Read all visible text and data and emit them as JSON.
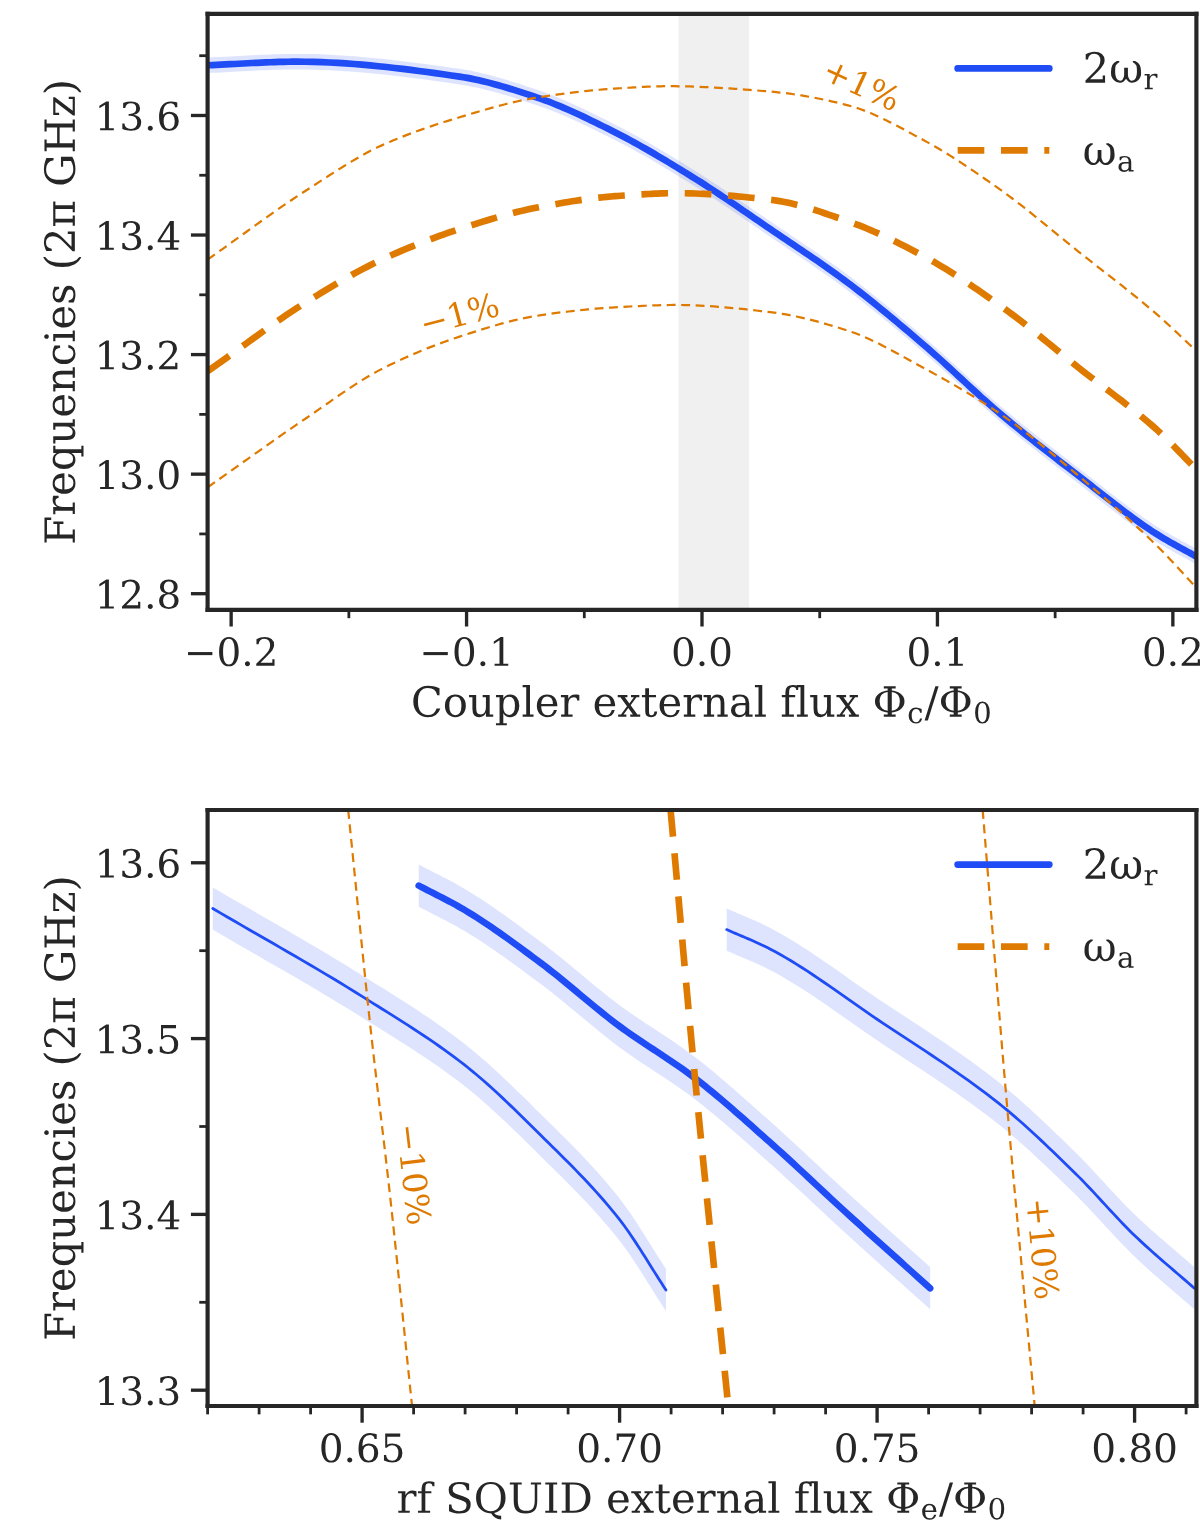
{
  "chart_data": [
    {
      "type": "line",
      "xlabel": "Coupler external flux Φ$_{c}$/Φ$_{0}$",
      "ylabel": "Frequencies (2π GHz)",
      "xlim": [
        -0.21,
        0.21
      ],
      "ylim": [
        12.773,
        13.77
      ],
      "xticks": [
        {
          "value": -0.2,
          "label": "−0.2"
        },
        {
          "value": -0.15,
          "label": null
        },
        {
          "value": -0.1,
          "label": "−0.1"
        },
        {
          "value": -0.05,
          "label": null
        },
        {
          "value": 0.0,
          "label": "0.0"
        },
        {
          "value": 0.05,
          "label": null
        },
        {
          "value": 0.1,
          "label": "0.1"
        },
        {
          "value": 0.15,
          "label": null
        },
        {
          "value": 0.2,
          "label": "0.2"
        }
      ],
      "yticks": [
        {
          "value": 12.8,
          "label": "12.8"
        },
        {
          "value": 12.9,
          "label": null
        },
        {
          "value": 13.0,
          "label": "13.0"
        },
        {
          "value": 13.1,
          "label": null
        },
        {
          "value": 13.2,
          "label": "13.2"
        },
        {
          "value": 13.3,
          "label": null
        },
        {
          "value": 13.4,
          "label": "13.4"
        },
        {
          "value": 13.5,
          "label": null
        },
        {
          "value": 13.6,
          "label": "13.6"
        },
        {
          "value": 13.7,
          "label": null
        }
      ],
      "bands": [
        {
          "axis": "x",
          "from": -0.01,
          "to": 0.02,
          "color": "#f0f0f0"
        }
      ],
      "grid": false,
      "legend": "top right",
      "series": [
        {
          "name": "2ω$_{r}$",
          "color": "#1f4cf5",
          "line_style": "solid",
          "x": [
            -0.21,
            -0.172,
            -0.103,
            -0.07,
            -0.037,
            -0.004,
            0.029,
            0.062,
            0.094,
            0.127,
            0.16,
            0.193,
            0.21
          ],
          "values": [
            13.684,
            13.69,
            13.665,
            13.63,
            13.572,
            13.497,
            13.41,
            13.32,
            13.217,
            13.1,
            12.997,
            12.9,
            12.862
          ],
          "lower": [
            13.671,
            13.677,
            13.652,
            13.617,
            13.559,
            13.484,
            13.397,
            13.307,
            13.204,
            13.087,
            12.984,
            12.887,
            12.849
          ],
          "upper": [
            13.697,
            13.703,
            13.678,
            13.643,
            13.585,
            13.51,
            13.423,
            13.333,
            13.23,
            13.113,
            13.01,
            12.913,
            12.875
          ]
        },
        {
          "name": "ω$_{a}$",
          "color": "#df7a00",
          "line_style": "dashed",
          "x": [
            -0.21,
            -0.168,
            -0.136,
            -0.103,
            -0.07,
            -0.037,
            -0.011,
            0.029,
            0.062,
            0.094,
            0.127,
            0.16,
            0.193,
            0.21
          ],
          "values": [
            13.172,
            13.288,
            13.359,
            13.41,
            13.446,
            13.465,
            13.47,
            13.459,
            13.423,
            13.365,
            13.281,
            13.178,
            13.075,
            13.008
          ]
        },
        {
          "color": "#df7a00",
          "line_style": "dashed",
          "x": [
            -0.21,
            -0.168,
            -0.136,
            -0.103,
            -0.07,
            -0.037,
            -0.014,
            0.029,
            0.062,
            0.094,
            0.127,
            0.16,
            0.193,
            0.21
          ],
          "values": [
            13.359,
            13.475,
            13.55,
            13.597,
            13.63,
            13.645,
            13.649,
            13.64,
            13.617,
            13.559,
            13.475,
            13.372,
            13.268,
            13.206
          ]
        },
        {
          "color": "#df7a00",
          "line_style": "dashed",
          "x": [
            -0.21,
            -0.168,
            -0.136,
            -0.103,
            -0.07,
            -0.037,
            -0.011,
            0.029,
            0.062,
            0.094,
            0.127,
            0.16,
            0.193,
            0.21
          ],
          "values": [
            12.978,
            13.094,
            13.176,
            13.23,
            13.265,
            13.279,
            13.283,
            13.271,
            13.24,
            13.178,
            13.1,
            12.997,
            12.881,
            12.81
          ]
        }
      ],
      "annotations": [
        {
          "text": "+1%",
          "x": 0.063,
          "y": 13.61
        },
        {
          "text": "−1%",
          "x": -0.1,
          "y": 13.223
        }
      ]
    },
    {
      "type": "line",
      "xlabel": "rf SQUID external flux Φ$_{e}$/Φ$_{0}$",
      "ylabel": "Frequencies (2π GHz)",
      "xlim": [
        0.62,
        0.812
      ],
      "ylim": [
        13.291,
        13.63
      ],
      "xticks": [
        {
          "value": 0.62,
          "label": null
        },
        {
          "value": 0.63,
          "label": null
        },
        {
          "value": 0.64,
          "label": null
        },
        {
          "value": 0.65,
          "label": "0.65"
        },
        {
          "value": 0.66,
          "label": null
        },
        {
          "value": 0.67,
          "label": null
        },
        {
          "value": 0.68,
          "label": null
        },
        {
          "value": 0.69,
          "label": null
        },
        {
          "value": 0.7,
          "label": "0.70"
        },
        {
          "value": 0.71,
          "label": null
        },
        {
          "value": 0.72,
          "label": null
        },
        {
          "value": 0.73,
          "label": null
        },
        {
          "value": 0.74,
          "label": null
        },
        {
          "value": 0.75,
          "label": "0.75"
        },
        {
          "value": 0.76,
          "label": null
        },
        {
          "value": 0.77,
          "label": null
        },
        {
          "value": 0.78,
          "label": null
        },
        {
          "value": 0.79,
          "label": null
        },
        {
          "value": 0.8,
          "label": "0.80"
        },
        {
          "value": 0.81,
          "label": null
        }
      ],
      "yticks": [
        {
          "value": 13.3,
          "label": "13.3"
        },
        {
          "value": 13.35,
          "label": null
        },
        {
          "value": 13.4,
          "label": "13.4"
        },
        {
          "value": 13.45,
          "label": null
        },
        {
          "value": 13.5,
          "label": "13.5"
        },
        {
          "value": 13.55,
          "label": null
        },
        {
          "value": 13.6,
          "label": "13.6"
        }
      ],
      "grid": false,
      "legend": "top right",
      "series": [
        {
          "color": "#1f4cf5",
          "line_style": "solid",
          "x": [
            0.621,
            0.65,
            0.6699,
            0.6847,
            0.7,
            0.709
          ],
          "values": [
            13.574,
            13.524,
            13.485,
            13.445,
            13.397,
            13.357
          ],
          "lower": [
            13.562,
            13.512,
            13.473,
            13.433,
            13.385,
            13.345
          ],
          "upper": [
            13.586,
            13.536,
            13.497,
            13.457,
            13.409,
            13.369
          ]
        },
        {
          "name": "2ω$_{r}$",
          "color": "#1f4cf5",
          "line_style": "solid",
          "x": [
            0.661,
            0.67,
            0.6847,
            0.7,
            0.7144,
            0.7292,
            0.744,
            0.7603
          ],
          "values": [
            13.587,
            13.573,
            13.543,
            13.507,
            13.478,
            13.441,
            13.401,
            13.358
          ],
          "lower": [
            13.575,
            13.561,
            13.531,
            13.495,
            13.466,
            13.429,
            13.389,
            13.346
          ],
          "upper": [
            13.599,
            13.585,
            13.555,
            13.519,
            13.49,
            13.453,
            13.413,
            13.37
          ]
        },
        {
          "color": "#1f4cf5",
          "line_style": "solid",
          "x": [
            0.7208,
            0.7292,
            0.75,
            0.7737,
            0.7886,
            0.8,
            0.8116
          ],
          "values": [
            13.562,
            13.551,
            13.511,
            13.463,
            13.423,
            13.388,
            13.358
          ],
          "lower": [
            13.55,
            13.539,
            13.499,
            13.451,
            13.411,
            13.376,
            13.346
          ],
          "upper": [
            13.574,
            13.563,
            13.523,
            13.475,
            13.435,
            13.4,
            13.37
          ]
        },
        {
          "name": "ω$_{a}$",
          "color": "#df7a00",
          "line_style": "dashed",
          "x": [
            0.7099,
            0.7144,
            0.7211
          ],
          "values": [
            13.63,
            13.485,
            13.291
          ]
        },
        {
          "color": "#df7a00",
          "line_style": "dashed",
          "x": [
            0.6473,
            0.6516,
            0.6553,
            0.6597
          ],
          "values": [
            13.63,
            13.507,
            13.414,
            13.291
          ]
        },
        {
          "color": "#df7a00",
          "line_style": "dashed",
          "x": [
            0.7705,
            0.7752,
            0.7806
          ],
          "values": [
            13.63,
            13.463,
            13.291
          ]
        }
      ],
      "annotations": [
        {
          "text": "−10%",
          "x": 0.6547,
          "y": 13.421
        },
        {
          "text": "+10%",
          "x": 0.7768,
          "y": 13.379
        }
      ]
    }
  ]
}
